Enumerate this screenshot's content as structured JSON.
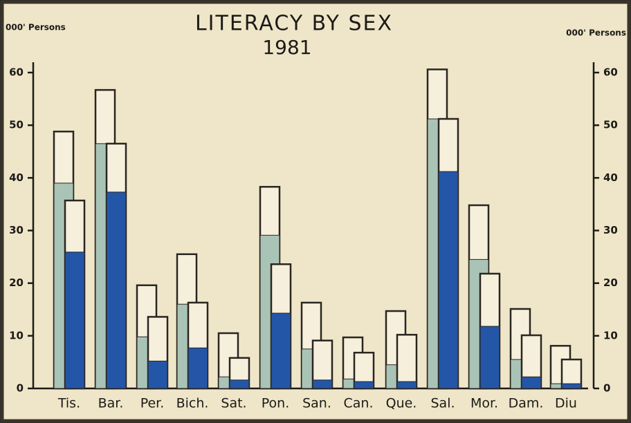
{
  "chart_data": {
    "type": "bar",
    "title": "LITERACY BY SEX",
    "subtitle": "1981",
    "y_label": "000' Persons",
    "y2_label": "000' Persons",
    "categories": [
      "Tis.",
      "Bar.",
      "Per.",
      "Bich.",
      "Sat.",
      "Pon.",
      "San.",
      "Can.",
      "Que.",
      "Sal.",
      "Mor.",
      "Dam.",
      "Diu"
    ],
    "series": [
      {
        "color": "#f5efdc",
        "values": [
          48.8,
          56.7,
          19.6,
          25.5,
          10.5,
          38.3,
          16.3,
          9.7,
          14.7,
          60.6,
          34.8,
          15.1,
          8.1
        ]
      },
      {
        "color": "#a9c4b6",
        "values": [
          39,
          46.5,
          9.8,
          16,
          2.2,
          29.1,
          7.5,
          1.8,
          4.5,
          51.2,
          24.5,
          5.5,
          0.9
        ]
      },
      {
        "color": "#f5efdc",
        "values": [
          35.7,
          46.5,
          13.6,
          16.3,
          5.8,
          23.6,
          9.1,
          6.8,
          10.2,
          51.2,
          21.8,
          10.1,
          5.5
        ]
      },
      {
        "color": "#2456a8",
        "values": [
          25.9,
          37.3,
          5.2,
          7.7,
          1.6,
          14.3,
          1.6,
          1.3,
          1.3,
          41.2,
          11.8,
          2.2,
          0.9
        ]
      }
    ],
    "ylim": [
      0,
      60
    ],
    "yticks": [
      0,
      10,
      20,
      30,
      40,
      50,
      60
    ],
    "y2lim": [
      0,
      60
    ],
    "y2ticks": [
      0,
      10,
      20,
      30,
      40,
      50,
      60
    ]
  }
}
